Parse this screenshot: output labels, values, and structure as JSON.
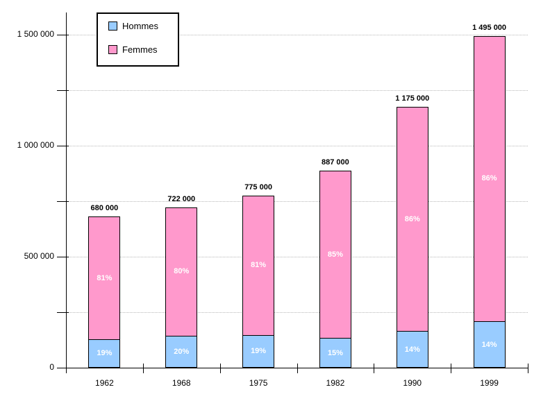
{
  "chart_data": {
    "type": "bar",
    "subtype": "stacked",
    "title": "",
    "xlabel": "",
    "ylabel": "",
    "categories": [
      "1962",
      "1968",
      "1975",
      "1982",
      "1990",
      "1999"
    ],
    "series": [
      {
        "name": "Hommes",
        "color": "#99CCFF",
        "percent": [
          19,
          20,
          19,
          15,
          14,
          14
        ],
        "percent_labels": [
          "19%",
          "20%",
          "19%",
          "15%",
          "14%",
          "14%"
        ]
      },
      {
        "name": "Femmes",
        "color": "#FF99CC",
        "percent": [
          81,
          80,
          81,
          85,
          86,
          86
        ],
        "percent_labels": [
          "81%",
          "80%",
          "81%",
          "85%",
          "86%",
          "86%"
        ]
      }
    ],
    "totals": [
      680000,
      722000,
      775000,
      887000,
      1175000,
      1495000
    ],
    "total_labels": [
      "680 000",
      "722 000",
      "775 000",
      "887 000",
      "1 175 000",
      "1 495 000"
    ],
    "y_axis": {
      "min": 0,
      "max": 1500000,
      "tick_interval": 250000,
      "labeled_ticks": [
        0,
        500000,
        1000000,
        1500000
      ],
      "labels": [
        "0",
        "500 000",
        "1 000 000",
        "1 500 000"
      ]
    },
    "grid": {
      "show": true,
      "style": "dotted",
      "color": "#b8b8b8",
      "interval": 250000
    },
    "legend": {
      "position": "top-left",
      "entries": [
        {
          "label": "Hommes",
          "color": "#99CCFF"
        },
        {
          "label": "Femmes",
          "color": "#FF99CC"
        }
      ]
    }
  },
  "colors": {
    "background": "#FFFFFF",
    "axis": "#000000",
    "bar_border": "#000000",
    "grid": "#b8b8b8",
    "total_text": "#000000",
    "percent_text": "#FFFFFF"
  }
}
